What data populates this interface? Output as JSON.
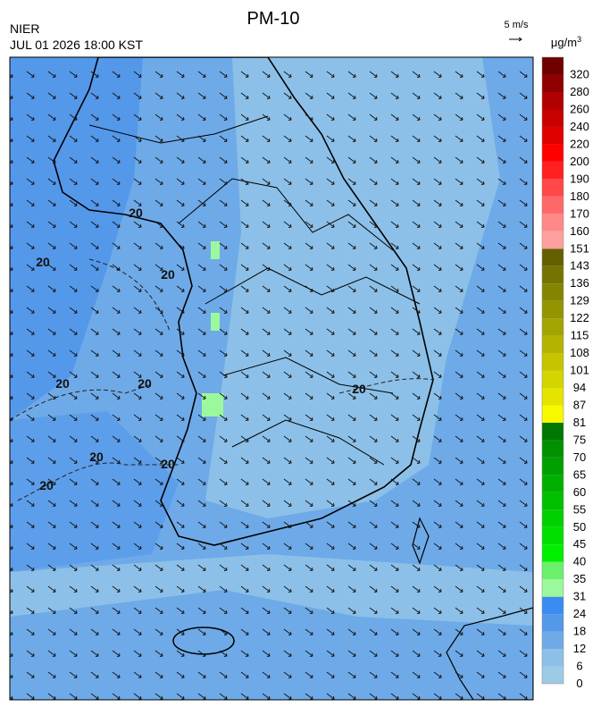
{
  "header": {
    "title": "PM-10",
    "agency": "NIER",
    "datetime": "JUL 01 2026 18:00 KST",
    "wind_scale": "5 m/s"
  },
  "colorbar": {
    "unit": "μg/m",
    "unit_power": "3",
    "levels": [
      0,
      6,
      12,
      18,
      24,
      31,
      35,
      40,
      45,
      50,
      55,
      60,
      65,
      70,
      75,
      81,
      87,
      94,
      101,
      108,
      115,
      122,
      129,
      136,
      143,
      151,
      160,
      170,
      180,
      190,
      200,
      220,
      240,
      260,
      280,
      320
    ],
    "colors": [
      "#9ccbe6",
      "#8cc0e8",
      "#6eaae8",
      "#5498ea",
      "#3a8cf0",
      "#9cf89c",
      "#6cf06c",
      "#00f000",
      "#00e000",
      "#00d000",
      "#00c000",
      "#00b000",
      "#00a000",
      "#009000",
      "#007800",
      "#f8f800",
      "#e4e400",
      "#d4d400",
      "#c4c400",
      "#b4b400",
      "#a4a400",
      "#949400",
      "#848400",
      "#747400",
      "#646000",
      "#ffa0a0",
      "#ff8888",
      "#ff6868",
      "#ff4848",
      "#ff2020",
      "#ff0000",
      "#e00000",
      "#c80000",
      "#b00000",
      "#900000",
      "#700000"
    ]
  },
  "contour_labels": [
    "20",
    "20",
    "20",
    "20",
    "20",
    "20",
    "20",
    "20",
    "20"
  ]
}
